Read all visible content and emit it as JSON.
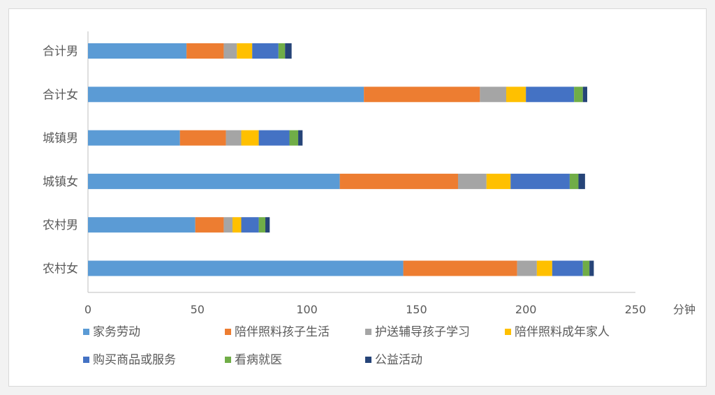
{
  "chart_data": {
    "type": "bar",
    "orientation": "horizontal",
    "stacked": true,
    "categories": [
      "合计男",
      "合计女",
      "城镇男",
      "城镇女",
      "农村男",
      "农村女"
    ],
    "series": [
      {
        "name": "家务劳动",
        "color": "#5b9bd5",
        "values": [
          45,
          126,
          42,
          115,
          49,
          144
        ]
      },
      {
        "name": "陪伴照料孩子生活",
        "color": "#ed7d31",
        "values": [
          17,
          53,
          21,
          54,
          13,
          52
        ]
      },
      {
        "name": "护送辅导孩子学习",
        "color": "#a5a5a5",
        "values": [
          6,
          12,
          7,
          13,
          4,
          9
        ]
      },
      {
        "name": "陪伴照料成年家人",
        "color": "#ffc000",
        "values": [
          7,
          9,
          8,
          11,
          4,
          7
        ]
      },
      {
        "name": "购买商品或服务",
        "color": "#4472c4",
        "values": [
          12,
          22,
          14,
          27,
          8,
          14
        ]
      },
      {
        "name": "看病就医",
        "color": "#70ad47",
        "values": [
          3,
          4,
          4,
          4,
          3,
          3
        ]
      },
      {
        "name": "公益活动",
        "color": "#264478",
        "values": [
          3,
          2,
          2,
          3,
          2,
          2
        ]
      }
    ],
    "xlim": [
      0,
      250
    ],
    "xticks": [
      0,
      50,
      100,
      150,
      200,
      250
    ],
    "xunit": "分钟",
    "grid": false,
    "legend_position": "bottom"
  }
}
